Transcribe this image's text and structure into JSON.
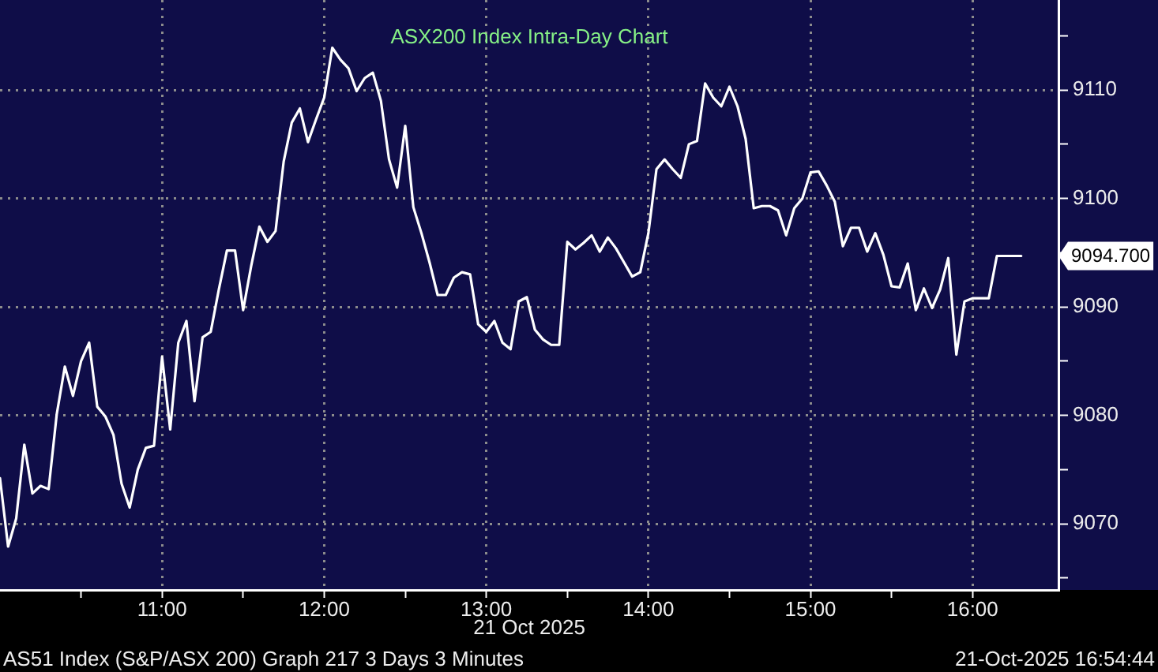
{
  "chart_data": {
    "type": "line",
    "title": "ASX200 Index Intra-Day Chart",
    "xlabel": "21 Oct 2025",
    "x": [
      10,
      10.05,
      10.1,
      10.15,
      10.2,
      10.25,
      10.3,
      10.35,
      10.4,
      10.45,
      10.5,
      10.55,
      10.6,
      10.65,
      10.7,
      10.75,
      10.8,
      10.85,
      10.9,
      10.95,
      11,
      11.05,
      11.1,
      11.15,
      11.2,
      11.25,
      11.3,
      11.35,
      11.4,
      11.45,
      11.5,
      11.55,
      11.6,
      11.65,
      11.7,
      11.75,
      11.8,
      11.85,
      11.9,
      11.95,
      12,
      12.05,
      12.1,
      12.15,
      12.2,
      12.25,
      12.3,
      12.35,
      12.4,
      12.45,
      12.5,
      12.55,
      12.6,
      12.65,
      12.7,
      12.75,
      12.8,
      12.85,
      12.9,
      12.95,
      13,
      13.05,
      13.1,
      13.15,
      13.2,
      13.25,
      13.3,
      13.35,
      13.4,
      13.45,
      13.5,
      13.55,
      13.6,
      13.65,
      13.7,
      13.75,
      13.8,
      13.85,
      13.9,
      13.95,
      14,
      14.05,
      14.1,
      14.15,
      14.2,
      14.25,
      14.3,
      14.35,
      14.4,
      14.45,
      14.5,
      14.55,
      14.6,
      14.65,
      14.7,
      14.75,
      14.8,
      14.85,
      14.9,
      14.95,
      15,
      15.05,
      15.1,
      15.15,
      15.2,
      15.25,
      15.3,
      15.35,
      15.4,
      15.45,
      15.5,
      15.55,
      15.6,
      15.65,
      15.7,
      15.75,
      15.8,
      15.85,
      15.9,
      15.95,
      16,
      16.05,
      16.1,
      16.15,
      16.2,
      16.25,
      16.3
    ],
    "values": [
      9074.2,
      9067.9,
      9070.5,
      9077.3,
      9072.8,
      9073.5,
      9073.2,
      9080.1,
      9084.5,
      9081.8,
      9085.0,
      9086.7,
      9080.8,
      9079.9,
      9078.2,
      9073.7,
      9071.5,
      9075.0,
      9077.0,
      9077.2,
      9085.4,
      9078.7,
      9086.7,
      9088.7,
      9081.3,
      9087.2,
      9087.7,
      9091.6,
      9095.2,
      9095.2,
      9089.7,
      9093.8,
      9097.4,
      9096.0,
      9097.0,
      9103.4,
      9107.0,
      9108.3,
      9105.2,
      9107.3,
      9109.3,
      9113.9,
      9112.8,
      9112.0,
      9109.9,
      9111.1,
      9111.6,
      9109.0,
      9103.6,
      9101.0,
      9106.7,
      9099.2,
      9096.8,
      9094.1,
      9091.1,
      9091.1,
      9092.7,
      9093.2,
      9093.0,
      9088.4,
      9087.7,
      9088.7,
      9086.7,
      9086.1,
      9090.5,
      9090.9,
      9087.9,
      9087.0,
      9086.5,
      9086.5,
      9096.0,
      9095.3,
      9095.9,
      9096.6,
      9095.1,
      9096.4,
      9095.4,
      9094.1,
      9092.8,
      9093.2,
      9096.8,
      9102.7,
      9103.6,
      9102.7,
      9101.9,
      9105.0,
      9105.3,
      9110.6,
      9109.3,
      9108.5,
      9110.3,
      9108.5,
      9105.5,
      9099.1,
      9099.3,
      9099.3,
      9098.9,
      9096.6,
      9099.1,
      9100.0,
      9102.4,
      9102.5,
      9101.2,
      9099.7,
      9095.6,
      9097.3,
      9097.3,
      9095.1,
      9096.8,
      9094.8,
      9091.9,
      9091.8,
      9094.0,
      9089.7,
      9091.7,
      9089.9,
      9091.6,
      9094.5,
      9085.6,
      9090.5,
      9090.8,
      9090.8,
      9090.8,
      9094.7,
      9094.7,
      9094.7,
      9094.7
    ],
    "color": "#ffffff",
    "xlim": [
      10,
      16.53
    ],
    "xticks": [
      {
        "value": 10.5,
        "label": null
      },
      {
        "value": 11,
        "label": "11:00"
      },
      {
        "value": 11.5,
        "label": null
      },
      {
        "value": 12,
        "label": "12:00"
      },
      {
        "value": 12.5,
        "label": null
      },
      {
        "value": 13,
        "label": "13:00"
      },
      {
        "value": 13.5,
        "label": null
      },
      {
        "value": 14,
        "label": "14:00"
      },
      {
        "value": 14.5,
        "label": null
      },
      {
        "value": 15,
        "label": "15:00"
      },
      {
        "value": 15.5,
        "label": null
      },
      {
        "value": 16,
        "label": "16:00"
      }
    ],
    "ylim": [
      9063.9,
      9118.3
    ],
    "yticks": [
      {
        "value": 9065,
        "label": null
      },
      9070,
      {
        "value": 9075,
        "label": null
      },
      9080,
      {
        "value": 9085,
        "label": null
      },
      9090,
      {
        "value": 9095,
        "label": null
      },
      9100,
      {
        "value": 9105,
        "label": null
      },
      9110,
      {
        "value": 9115,
        "label": null
      }
    ],
    "grid": true,
    "annotations": [
      "AS51 Index (S&P/ASX 200) Graph 217 3 Days 3 Minutes",
      "21-Oct-2025 16:54:44",
      {
        "text": "9094.700",
        "x": 16.3,
        "y": 9094.7
      }
    ]
  }
}
